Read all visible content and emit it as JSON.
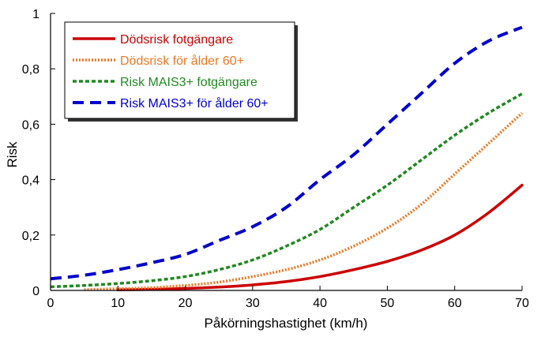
{
  "chart_data": {
    "type": "line",
    "xlabel": "Påkörningshastighet (km/h)",
    "ylabel": "Risk",
    "xlim": [
      0,
      70
    ],
    "ylim": [
      0,
      1
    ],
    "x_ticks": [
      "0",
      "10",
      "20",
      "30",
      "40",
      "50",
      "60",
      "70"
    ],
    "y_ticks": [
      "0",
      "0,2",
      "0,4",
      "0,6",
      "0,8",
      "1"
    ],
    "grid": false,
    "legend_position": "top-left",
    "series": [
      {
        "name": "Dödsrisk fotgängare",
        "color": "#cc0000",
        "style": "solid",
        "x": [
          10,
          15,
          20,
          25,
          30,
          35,
          40,
          45,
          50,
          55,
          60,
          65,
          70
        ],
        "y": [
          0.002,
          0.004,
          0.007,
          0.012,
          0.02,
          0.032,
          0.05,
          0.075,
          0.105,
          0.145,
          0.2,
          0.28,
          0.38
        ]
      },
      {
        "name": "Dödsrisk för ålder 60+",
        "color": "#ee7722",
        "style": "dotted",
        "x": [
          5,
          10,
          15,
          20,
          25,
          30,
          35,
          40,
          45,
          50,
          55,
          60,
          65,
          70
        ],
        "y": [
          0.003,
          0.006,
          0.01,
          0.018,
          0.03,
          0.05,
          0.075,
          0.11,
          0.16,
          0.225,
          0.31,
          0.42,
          0.53,
          0.64
        ]
      },
      {
        "name": "Risk MAIS3+ fotgängare",
        "color": "#228822",
        "style": "dashed",
        "x": [
          0,
          5,
          10,
          15,
          20,
          25,
          30,
          35,
          40,
          45,
          50,
          55,
          60,
          65,
          70
        ],
        "y": [
          0.013,
          0.018,
          0.025,
          0.035,
          0.05,
          0.075,
          0.11,
          0.16,
          0.22,
          0.3,
          0.38,
          0.47,
          0.56,
          0.64,
          0.71
        ]
      },
      {
        "name": "Risk MAIS3+ för ålder 60+",
        "color": "#0000cc",
        "style": "longdash",
        "x": [
          0,
          5,
          10,
          15,
          20,
          25,
          30,
          35,
          40,
          45,
          50,
          55,
          60,
          65,
          70
        ],
        "y": [
          0.042,
          0.055,
          0.075,
          0.1,
          0.13,
          0.18,
          0.23,
          0.3,
          0.4,
          0.49,
          0.6,
          0.71,
          0.82,
          0.9,
          0.95
        ]
      }
    ]
  }
}
